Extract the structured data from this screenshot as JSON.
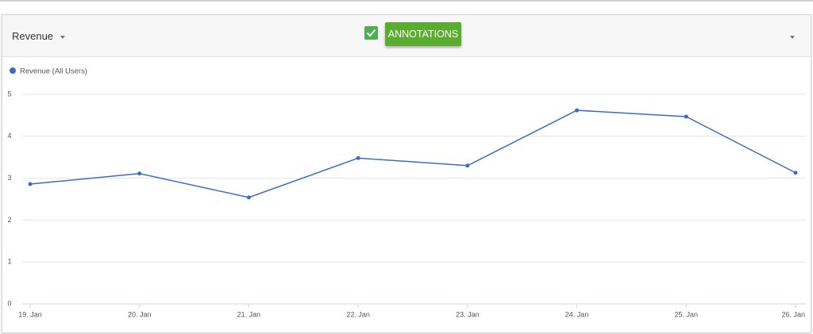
{
  "toolbar": {
    "metric": "Revenue",
    "button": "ANNOTATIONS"
  },
  "chart_data": {
    "type": "line",
    "categories": [
      "19. Jan",
      "20. Jan",
      "21. Jan",
      "22. Jan",
      "23. Jan",
      "24. Jan",
      "25. Jan",
      "26. Jan"
    ],
    "series": [
      {
        "name": "Revenue (All Users)",
        "color": "#3b6cc4",
        "values": [
          2.86,
          3.11,
          2.54,
          3.48,
          3.3,
          4.62,
          4.47,
          3.13
        ]
      }
    ],
    "ylim": [
      0,
      5
    ],
    "yticks": [
      0,
      1,
      2,
      3,
      4,
      5
    ],
    "grid": true
  }
}
